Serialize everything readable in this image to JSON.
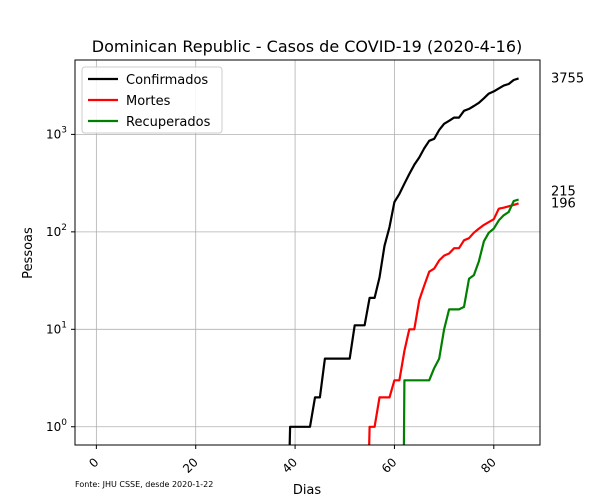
{
  "chart_data": {
    "type": "line",
    "title": "Dominican Republic - Casos de COVID-19 (2020-4-16)",
    "xlabel": "Dias",
    "ylabel": "Pessoas",
    "yscale": "log",
    "xlim": [
      -4.3,
      89.3
    ],
    "ylim": [
      0.65,
      5800
    ],
    "x_ticks": [
      0,
      20,
      40,
      60,
      80
    ],
    "y_ticks": [
      {
        "value": 1,
        "base": "10",
        "exp": "0"
      },
      {
        "value": 10,
        "base": "10",
        "exp": "1"
      },
      {
        "value": 100,
        "base": "10",
        "exp": "2"
      },
      {
        "value": 1000,
        "base": "10",
        "exp": "3"
      }
    ],
    "grid": true,
    "legend_position": "top-left",
    "source_note": "Fonte: JHU CSSE, desde 2020-1-22",
    "series": [
      {
        "name": "Confirmados",
        "color": "#000000",
        "end_label": "3755",
        "points": [
          [
            38.9,
            0.6
          ],
          [
            39,
            1
          ],
          [
            43,
            1
          ],
          [
            44,
            2
          ],
          [
            45,
            2
          ],
          [
            46,
            5
          ],
          [
            51,
            5
          ],
          [
            52,
            11
          ],
          [
            54,
            11
          ],
          [
            55,
            21
          ],
          [
            56,
            21
          ],
          [
            57,
            34
          ],
          [
            58,
            72
          ],
          [
            59,
            112
          ],
          [
            60,
            202
          ],
          [
            61,
            245
          ],
          [
            62,
            312
          ],
          [
            63,
            392
          ],
          [
            64,
            488
          ],
          [
            65,
            581
          ],
          [
            66,
            719
          ],
          [
            67,
            859
          ],
          [
            68,
            901
          ],
          [
            69,
            1109
          ],
          [
            70,
            1284
          ],
          [
            71,
            1380
          ],
          [
            72,
            1488
          ],
          [
            73,
            1488
          ],
          [
            74,
            1745
          ],
          [
            75,
            1828
          ],
          [
            76,
            1956
          ],
          [
            77,
            2111
          ],
          [
            78,
            2349
          ],
          [
            79,
            2620
          ],
          [
            80,
            2759
          ],
          [
            81,
            2967
          ],
          [
            82,
            3167
          ],
          [
            83,
            3286
          ],
          [
            84,
            3614
          ],
          [
            85,
            3755
          ]
        ]
      },
      {
        "name": "Mortes",
        "color": "#ff0000",
        "end_label": "196",
        "points": [
          [
            54.9,
            0.6
          ],
          [
            55,
            1
          ],
          [
            56,
            1
          ],
          [
            57,
            2
          ],
          [
            59,
            2
          ],
          [
            60,
            3
          ],
          [
            61,
            3
          ],
          [
            62,
            6
          ],
          [
            63,
            10
          ],
          [
            64,
            10
          ],
          [
            65,
            20
          ],
          [
            66,
            28
          ],
          [
            67,
            39
          ],
          [
            68,
            42
          ],
          [
            69,
            51
          ],
          [
            70,
            57
          ],
          [
            71,
            60
          ],
          [
            72,
            68
          ],
          [
            73,
            68
          ],
          [
            74,
            82
          ],
          [
            75,
            86
          ],
          [
            76,
            98
          ],
          [
            77,
            108
          ],
          [
            78,
            118
          ],
          [
            79,
            126
          ],
          [
            80,
            135
          ],
          [
            81,
            173
          ],
          [
            82,
            177
          ],
          [
            83,
            183
          ],
          [
            84,
            189
          ],
          [
            85,
            196
          ]
        ]
      },
      {
        "name": "Recuperados",
        "color": "#008000",
        "end_label": "215",
        "points": [
          [
            61.9,
            0.6
          ],
          [
            62,
            3
          ],
          [
            67,
            3
          ],
          [
            68,
            4
          ],
          [
            69,
            5
          ],
          [
            70,
            10
          ],
          [
            71,
            16
          ],
          [
            73,
            16
          ],
          [
            74,
            17
          ],
          [
            75,
            33
          ],
          [
            76,
            36
          ],
          [
            77,
            50
          ],
          [
            78,
            80
          ],
          [
            79,
            98
          ],
          [
            80,
            108
          ],
          [
            81,
            131
          ],
          [
            82,
            148
          ],
          [
            83,
            160
          ],
          [
            84,
            207
          ],
          [
            85,
            215
          ]
        ]
      }
    ]
  }
}
